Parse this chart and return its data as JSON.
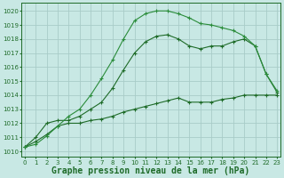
{
  "background_color": "#c8e8e4",
  "grid_color": "#a8ccc8",
  "line_color_dark": "#1e6b28",
  "line_color_bright": "#2a8c3a",
  "xlabel": "Graphe pression niveau de la mer (hPa)",
  "xlabel_fontsize": 7.0,
  "xlim": [
    -0.3,
    23.3
  ],
  "ylim": [
    1009.6,
    1020.6
  ],
  "yticks": [
    1010,
    1011,
    1012,
    1013,
    1014,
    1015,
    1016,
    1017,
    1018,
    1019,
    1020
  ],
  "xticks": [
    0,
    1,
    2,
    3,
    4,
    5,
    6,
    7,
    8,
    9,
    10,
    11,
    12,
    13,
    14,
    15,
    16,
    17,
    18,
    19,
    20,
    21,
    22,
    23
  ],
  "top_x": [
    0,
    1,
    2,
    3,
    4,
    5,
    6,
    7,
    8,
    9,
    10,
    11,
    12,
    13,
    14,
    15,
    16,
    17,
    18,
    19,
    20,
    21,
    22,
    23
  ],
  "top_y": [
    1010.3,
    1010.5,
    1011.1,
    1011.8,
    1012.5,
    1013.0,
    1014.0,
    1015.2,
    1016.5,
    1018.0,
    1019.3,
    1019.8,
    1020.0,
    1020.0,
    1019.8,
    1019.5,
    1019.1,
    1019.0,
    1018.8,
    1018.6,
    1018.2,
    1017.5,
    1015.5,
    1014.3
  ],
  "mid_x": [
    0,
    1,
    2,
    3,
    4,
    5,
    6,
    7,
    8,
    9,
    10,
    11,
    12,
    13,
    14,
    15,
    16,
    17,
    18,
    19,
    20,
    21,
    22,
    23
  ],
  "mid_y": [
    1010.3,
    1011.0,
    1012.0,
    1012.2,
    1012.2,
    1012.5,
    1013.0,
    1013.5,
    1014.5,
    1015.8,
    1017.0,
    1017.8,
    1018.2,
    1018.3,
    1018.0,
    1017.5,
    1017.3,
    1017.5,
    1017.5,
    1017.8,
    1018.0,
    1017.5,
    1015.5,
    1014.2
  ],
  "bot_x": [
    0,
    1,
    2,
    3,
    4,
    5,
    6,
    7,
    8,
    9,
    10,
    11,
    12,
    13,
    14,
    15,
    16,
    17,
    18,
    19,
    20,
    21,
    22,
    23
  ],
  "bot_y": [
    1010.3,
    1010.7,
    1011.2,
    1011.8,
    1012.0,
    1012.0,
    1012.2,
    1012.3,
    1012.5,
    1012.8,
    1013.0,
    1013.2,
    1013.4,
    1013.6,
    1013.8,
    1013.5,
    1013.5,
    1013.5,
    1013.7,
    1013.8,
    1014.0,
    1014.0,
    1014.0,
    1014.0
  ]
}
